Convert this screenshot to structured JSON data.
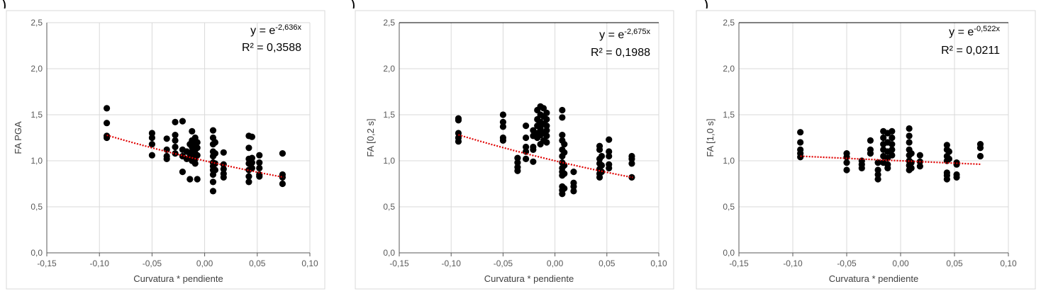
{
  "panel_tags": [
    ")",
    ")",
    ")"
  ],
  "chart_data": [
    {
      "type": "scatter",
      "xlabel": "Curvatura * pendiente",
      "ylabel": "FA PGA",
      "xlim": [
        -0.15,
        0.1
      ],
      "ylim": [
        0.0,
        2.5
      ],
      "xticks": [
        "-0,15",
        "-0,10",
        "-0,05",
        "0,00",
        "0,05",
        "0,10"
      ],
      "yticks": [
        "0,0",
        "0,5",
        "1,0",
        "1,5",
        "2,0",
        "2,5"
      ],
      "grid": true,
      "trend": {
        "type": "exponential",
        "coef": -2.636,
        "x_range": [
          -0.093,
          0.075
        ],
        "eq_base": "y = e",
        "eq_exp": "-2,636x",
        "r2": "R² = 0,3588",
        "color": "#e00000"
      },
      "points": [
        [
          -0.093,
          1.57
        ],
        [
          -0.093,
          1.41
        ],
        [
          -0.093,
          1.27
        ],
        [
          -0.093,
          1.25
        ],
        [
          -0.05,
          1.3
        ],
        [
          -0.05,
          1.25
        ],
        [
          -0.05,
          1.18
        ],
        [
          -0.05,
          1.06
        ],
        [
          -0.036,
          1.24
        ],
        [
          -0.036,
          1.12
        ],
        [
          -0.036,
          1.05
        ],
        [
          -0.036,
          1.02
        ],
        [
          -0.028,
          1.42
        ],
        [
          -0.028,
          1.28
        ],
        [
          -0.028,
          1.22
        ],
        [
          -0.028,
          1.15
        ],
        [
          -0.028,
          1.08
        ],
        [
          -0.021,
          1.43
        ],
        [
          -0.021,
          1.12
        ],
        [
          -0.021,
          1.05
        ],
        [
          -0.021,
          0.88
        ],
        [
          -0.017,
          1.1
        ],
        [
          -0.017,
          1.02
        ],
        [
          -0.014,
          1.18
        ],
        [
          -0.014,
          1.08
        ],
        [
          -0.014,
          1.04
        ],
        [
          -0.014,
          0.8
        ],
        [
          -0.012,
          1.32
        ],
        [
          -0.012,
          1.22
        ],
        [
          -0.012,
          1.15
        ],
        [
          -0.012,
          1.1
        ],
        [
          -0.012,
          1.05
        ],
        [
          -0.012,
          1.0
        ],
        [
          -0.009,
          1.25
        ],
        [
          -0.009,
          1.18
        ],
        [
          -0.009,
          1.12
        ],
        [
          -0.009,
          1.08
        ],
        [
          -0.009,
          1.02
        ],
        [
          -0.009,
          0.97
        ],
        [
          -0.007,
          1.2
        ],
        [
          -0.007,
          1.14
        ],
        [
          -0.007,
          1.06
        ],
        [
          -0.007,
          0.8
        ],
        [
          0.008,
          1.33
        ],
        [
          0.008,
          1.25
        ],
        [
          0.008,
          1.18
        ],
        [
          0.008,
          1.1
        ],
        [
          0.008,
          1.05
        ],
        [
          0.008,
          0.98
        ],
        [
          0.008,
          0.94
        ],
        [
          0.008,
          0.9
        ],
        [
          0.008,
          0.85
        ],
        [
          0.008,
          0.77
        ],
        [
          0.008,
          0.67
        ],
        [
          0.01,
          1.2
        ],
        [
          0.01,
          1.08
        ],
        [
          0.01,
          0.97
        ],
        [
          0.01,
          0.9
        ],
        [
          0.018,
          1.09
        ],
        [
          0.018,
          0.96
        ],
        [
          0.018,
          0.91
        ],
        [
          0.018,
          0.86
        ],
        [
          0.018,
          0.82
        ],
        [
          0.042,
          1.27
        ],
        [
          0.042,
          1.14
        ],
        [
          0.042,
          1.02
        ],
        [
          0.042,
          0.97
        ],
        [
          0.042,
          0.9
        ],
        [
          0.042,
          0.83
        ],
        [
          0.042,
          0.77
        ],
        [
          0.045,
          1.26
        ],
        [
          0.045,
          1.03
        ],
        [
          0.045,
          0.98
        ],
        [
          0.045,
          0.92
        ],
        [
          0.052,
          1.06
        ],
        [
          0.052,
          0.98
        ],
        [
          0.052,
          0.92
        ],
        [
          0.052,
          0.85
        ],
        [
          0.052,
          0.83
        ],
        [
          0.074,
          1.08
        ],
        [
          0.074,
          0.85
        ],
        [
          0.074,
          0.82
        ],
        [
          0.074,
          0.75
        ]
      ]
    },
    {
      "type": "scatter",
      "xlabel": "Curvatura * pendiente",
      "ylabel": "FA [0,2 s]",
      "xlim": [
        -0.15,
        0.1
      ],
      "ylim": [
        0.0,
        2.5
      ],
      "xticks": [
        "-0,15",
        "-0,10",
        "-0,05",
        "0,00",
        "0,05",
        "0,10"
      ],
      "yticks": [
        "0,0",
        "0,5",
        "1,0",
        "1,5",
        "2,0",
        "2,5"
      ],
      "grid": true,
      "trend": {
        "type": "exponential",
        "coef": -2.675,
        "x_range": [
          -0.093,
          0.075
        ],
        "eq_base": "y = e",
        "eq_exp": "-2,675x",
        "r2": "R² = 0,1988",
        "color": "#e00000"
      },
      "points": [
        [
          -0.093,
          1.46
        ],
        [
          -0.093,
          1.44
        ],
        [
          -0.093,
          1.3
        ],
        [
          -0.093,
          1.25
        ],
        [
          -0.093,
          1.21
        ],
        [
          -0.05,
          1.5
        ],
        [
          -0.05,
          1.42
        ],
        [
          -0.05,
          1.37
        ],
        [
          -0.05,
          1.25
        ],
        [
          -0.05,
          1.22
        ],
        [
          -0.036,
          1.03
        ],
        [
          -0.036,
          0.98
        ],
        [
          -0.036,
          0.93
        ],
        [
          -0.036,
          0.89
        ],
        [
          -0.028,
          1.38
        ],
        [
          -0.028,
          1.25
        ],
        [
          -0.028,
          1.15
        ],
        [
          -0.028,
          1.1
        ],
        [
          -0.028,
          1.02
        ],
        [
          -0.021,
          1.33
        ],
        [
          -0.021,
          1.27
        ],
        [
          -0.021,
          1.15
        ],
        [
          -0.021,
          1.12
        ],
        [
          -0.021,
          0.99
        ],
        [
          -0.017,
          1.55
        ],
        [
          -0.017,
          1.45
        ],
        [
          -0.017,
          1.38
        ],
        [
          -0.017,
          1.3
        ],
        [
          -0.017,
          1.25
        ],
        [
          -0.014,
          1.59
        ],
        [
          -0.014,
          1.5
        ],
        [
          -0.014,
          1.42
        ],
        [
          -0.014,
          1.35
        ],
        [
          -0.014,
          1.28
        ],
        [
          -0.014,
          1.18
        ],
        [
          -0.011,
          1.57
        ],
        [
          -0.011,
          1.48
        ],
        [
          -0.011,
          1.4
        ],
        [
          -0.011,
          1.3
        ],
        [
          -0.011,
          1.22
        ],
        [
          -0.008,
          1.52
        ],
        [
          -0.008,
          1.45
        ],
        [
          -0.008,
          1.38
        ],
        [
          -0.008,
          1.33
        ],
        [
          -0.008,
          1.27
        ],
        [
          -0.008,
          1.2
        ],
        [
          0.007,
          1.55
        ],
        [
          0.007,
          1.47
        ],
        [
          0.007,
          1.28
        ],
        [
          0.007,
          1.22
        ],
        [
          0.007,
          1.12
        ],
        [
          0.007,
          1.05
        ],
        [
          0.007,
          0.98
        ],
        [
          0.007,
          0.92
        ],
        [
          0.007,
          0.88
        ],
        [
          0.007,
          0.84
        ],
        [
          0.007,
          0.72
        ],
        [
          0.007,
          0.68
        ],
        [
          0.007,
          0.64
        ],
        [
          0.009,
          1.18
        ],
        [
          0.009,
          1.09
        ],
        [
          0.009,
          0.95
        ],
        [
          0.009,
          0.86
        ],
        [
          0.009,
          0.7
        ],
        [
          0.018,
          0.88
        ],
        [
          0.018,
          0.76
        ],
        [
          0.018,
          0.72
        ],
        [
          0.018,
          0.67
        ],
        [
          0.043,
          1.16
        ],
        [
          0.043,
          1.12
        ],
        [
          0.043,
          1.02
        ],
        [
          0.043,
          0.97
        ],
        [
          0.043,
          0.91
        ],
        [
          0.043,
          0.86
        ],
        [
          0.043,
          0.82
        ],
        [
          0.045,
          1.05
        ],
        [
          0.045,
          0.95
        ],
        [
          0.045,
          0.88
        ],
        [
          0.052,
          1.23
        ],
        [
          0.052,
          1.1
        ],
        [
          0.052,
          1.05
        ],
        [
          0.052,
          0.96
        ],
        [
          0.052,
          0.92
        ],
        [
          0.074,
          1.05
        ],
        [
          0.074,
          1.02
        ],
        [
          0.074,
          0.97
        ],
        [
          0.074,
          0.82
        ]
      ]
    },
    {
      "type": "scatter",
      "xlabel": "Curvatura * pendiente",
      "ylabel": "FA [1,0 s]",
      "xlim": [
        -0.15,
        0.1
      ],
      "ylim": [
        0.0,
        2.5
      ],
      "xticks": [
        "-0,15",
        "-0,10",
        "-0,05",
        "0,00",
        "0,05",
        "0,10"
      ],
      "yticks": [
        "0,0",
        "0,5",
        "1,0",
        "1,5",
        "2,0",
        "2,5"
      ],
      "grid": true,
      "trend": {
        "type": "exponential",
        "coef": -0.522,
        "x_range": [
          -0.093,
          0.075
        ],
        "eq_base": "y = e",
        "eq_exp": "-0,522x",
        "r2": "R² = 0,0211",
        "color": "#e00000"
      },
      "points": [
        [
          -0.093,
          1.31
        ],
        [
          -0.093,
          1.2
        ],
        [
          -0.093,
          1.12
        ],
        [
          -0.093,
          1.08
        ],
        [
          -0.093,
          1.04
        ],
        [
          -0.05,
          1.08
        ],
        [
          -0.05,
          1.04
        ],
        [
          -0.05,
          0.98
        ],
        [
          -0.05,
          0.9
        ],
        [
          -0.036,
          1.0
        ],
        [
          -0.036,
          0.96
        ],
        [
          -0.036,
          0.92
        ],
        [
          -0.028,
          1.22
        ],
        [
          -0.028,
          1.12
        ],
        [
          -0.028,
          1.08
        ],
        [
          -0.021,
          0.98
        ],
        [
          -0.021,
          0.9
        ],
        [
          -0.021,
          0.85
        ],
        [
          -0.021,
          0.8
        ],
        [
          -0.016,
          1.32
        ],
        [
          -0.016,
          1.25
        ],
        [
          -0.016,
          1.18
        ],
        [
          -0.016,
          1.12
        ],
        [
          -0.016,
          1.05
        ],
        [
          -0.016,
          0.98
        ],
        [
          -0.012,
          1.3
        ],
        [
          -0.012,
          1.2
        ],
        [
          -0.012,
          1.1
        ],
        [
          -0.012,
          1.03
        ],
        [
          -0.012,
          0.96
        ],
        [
          -0.012,
          0.92
        ],
        [
          -0.008,
          1.32
        ],
        [
          -0.008,
          1.25
        ],
        [
          -0.008,
          1.18
        ],
        [
          -0.008,
          1.12
        ],
        [
          -0.008,
          1.06
        ],
        [
          0.008,
          1.35
        ],
        [
          0.008,
          1.27
        ],
        [
          0.008,
          1.2
        ],
        [
          0.008,
          1.12
        ],
        [
          0.008,
          1.06
        ],
        [
          0.008,
          1.0
        ],
        [
          0.008,
          0.95
        ],
        [
          0.008,
          0.9
        ],
        [
          0.01,
          1.08
        ],
        [
          0.01,
          0.98
        ],
        [
          0.01,
          0.92
        ],
        [
          0.018,
          1.06
        ],
        [
          0.018,
          0.99
        ],
        [
          0.018,
          0.94
        ],
        [
          0.043,
          1.17
        ],
        [
          0.043,
          1.12
        ],
        [
          0.043,
          1.05
        ],
        [
          0.043,
          1.0
        ],
        [
          0.043,
          0.87
        ],
        [
          0.043,
          0.84
        ],
        [
          0.043,
          0.8
        ],
        [
          0.045,
          1.1
        ],
        [
          0.045,
          1.02
        ],
        [
          0.052,
          0.98
        ],
        [
          0.052,
          0.96
        ],
        [
          0.052,
          0.85
        ],
        [
          0.052,
          0.82
        ],
        [
          0.074,
          1.18
        ],
        [
          0.074,
          1.14
        ],
        [
          0.074,
          1.05
        ]
      ]
    }
  ]
}
